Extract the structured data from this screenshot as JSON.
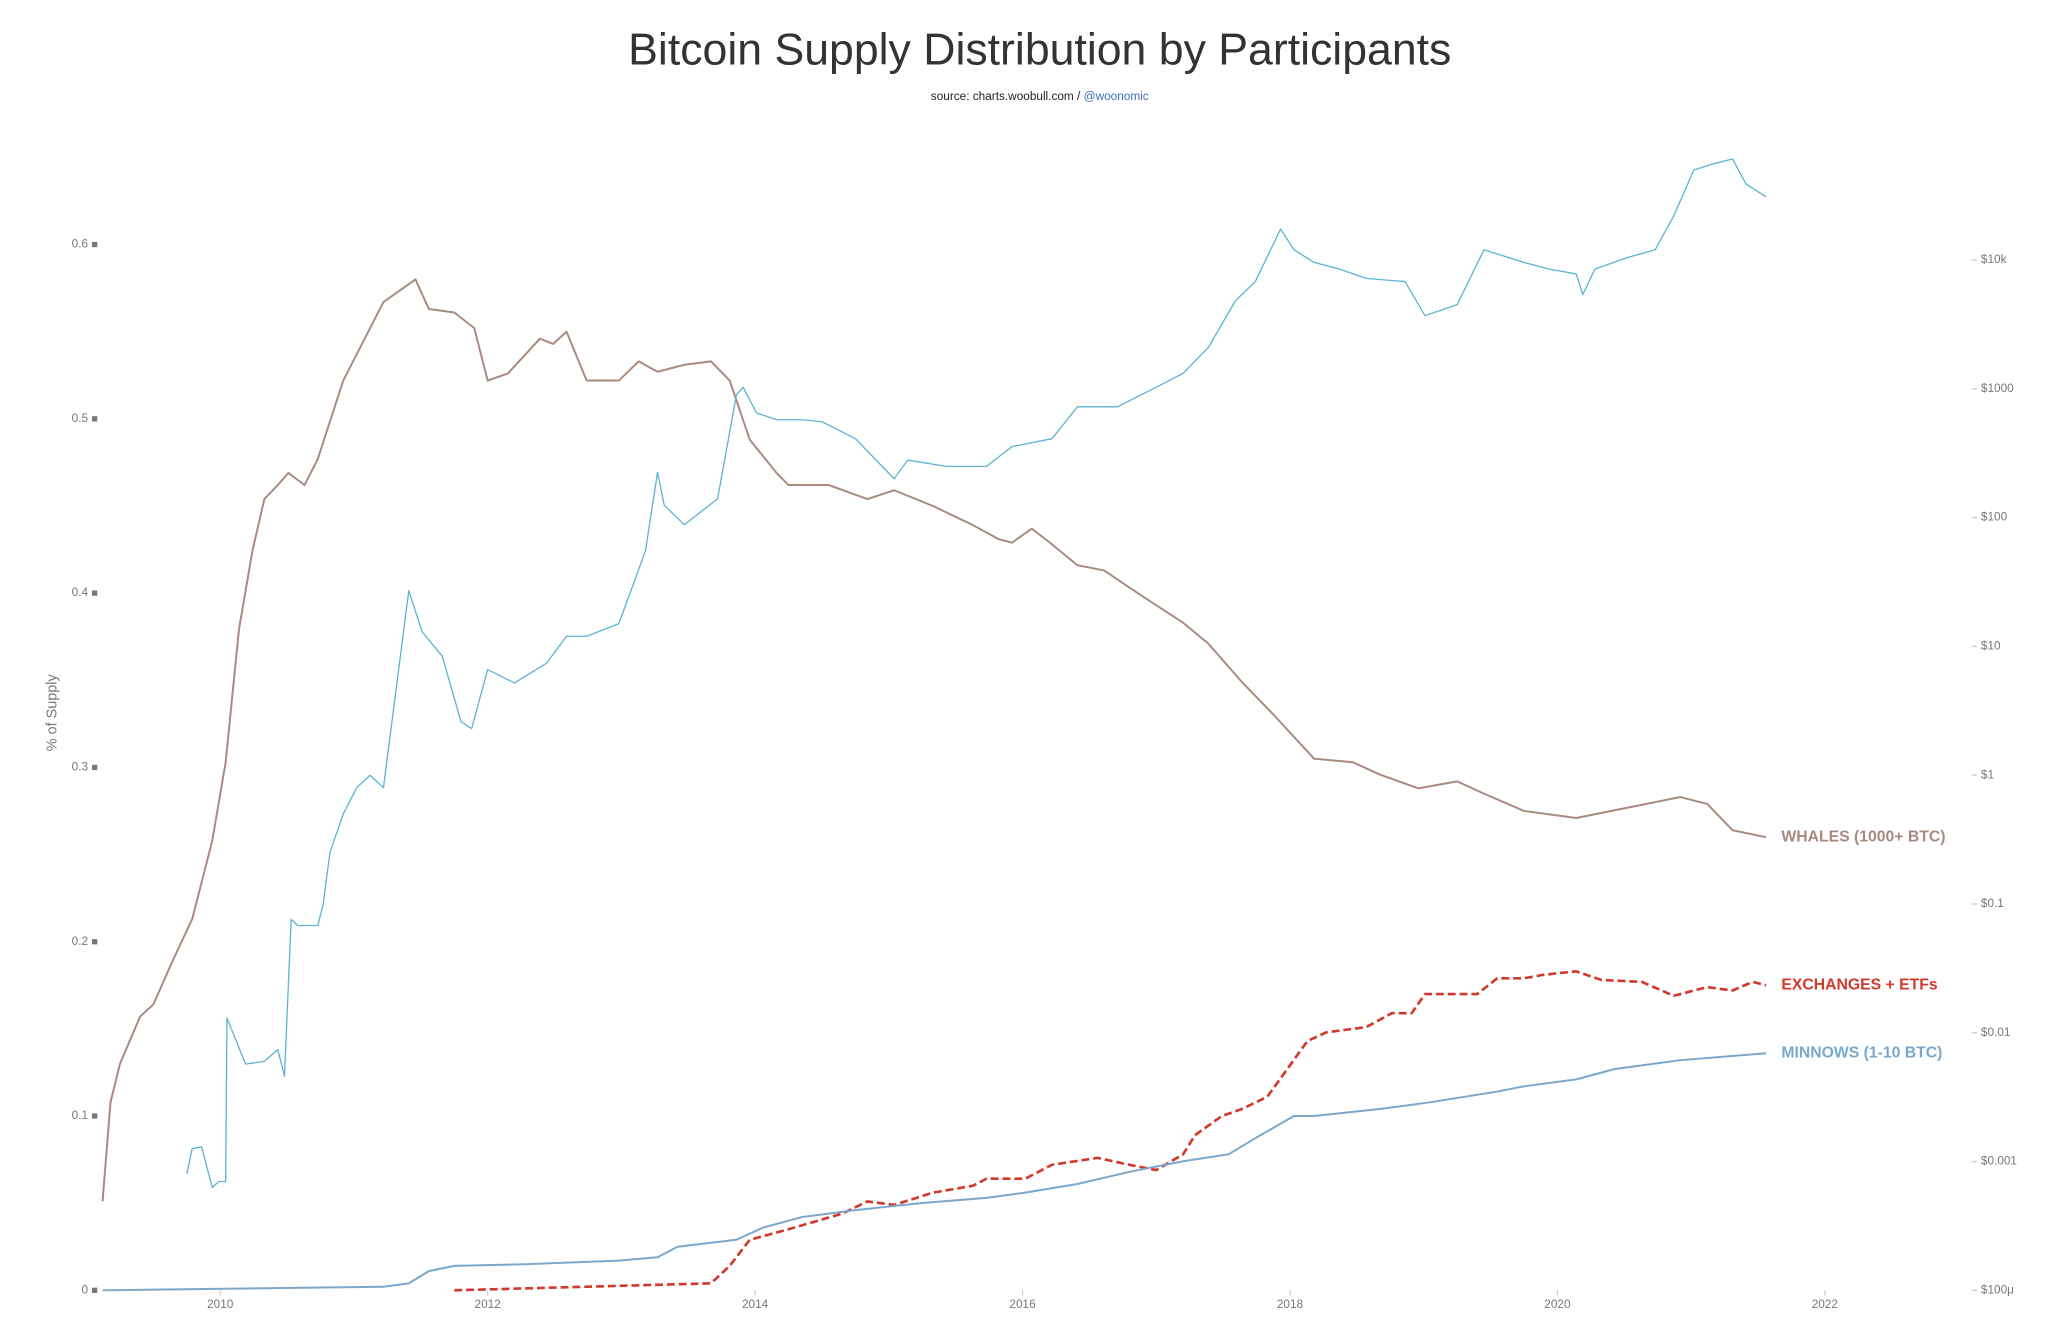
{
  "chart_data": {
    "type": "line",
    "title": "Bitcoin Supply Distribution by Participants",
    "subtitle": "source: charts.woobull.com / ",
    "subtitle_link": "@woonomic",
    "ylabel": "% of Supply",
    "xlim": [
      2009.1,
      2023
    ],
    "xticks": [
      2010,
      2012,
      2014,
      2016,
      2018,
      2020,
      2022
    ],
    "ylim": [
      0,
      0.665
    ],
    "yticks": [
      0,
      0.1,
      0.2,
      0.3,
      0.4,
      0.5,
      0.6
    ],
    "y2lim": [
      0.0001,
      100000
    ],
    "y2log": true,
    "y2ticks": [
      {
        "value": 0.0001,
        "label": "$100μ"
      },
      {
        "value": 0.001,
        "label": "$0.001"
      },
      {
        "value": 0.01,
        "label": "$0.01"
      },
      {
        "value": 0.1,
        "label": "$0.1"
      },
      {
        "value": 1,
        "label": "$1"
      },
      {
        "value": 10,
        "label": "$10"
      },
      {
        "value": 100,
        "label": "$100"
      },
      {
        "value": 1000,
        "label": "$1000"
      },
      {
        "value": 10000,
        "label": "$10k"
      }
    ],
    "series": [
      {
        "name": "WHALES (1000+ BTC)",
        "color": "#a88a80",
        "dashed": false,
        "x": [
          2009.12,
          2009.18,
          2009.25,
          2009.4,
          2009.5,
          2009.65,
          2009.79,
          2009.94,
          2010.04,
          2010.14,
          2010.24,
          2010.33,
          2010.43,
          2010.51,
          2010.63,
          2010.73,
          2010.92,
          2011.22,
          2011.46,
          2011.56,
          2011.75,
          2011.9,
          2012.0,
          2012.15,
          2012.39,
          2012.49,
          2012.59,
          2012.74,
          2012.98,
          2013.13,
          2013.27,
          2013.47,
          2013.67,
          2013.81,
          2013.96,
          2014.16,
          2014.25,
          2014.55,
          2014.84,
          2015.04,
          2015.33,
          2015.63,
          2015.82,
          2015.92,
          2016.07,
          2016.22,
          2016.41,
          2016.61,
          2016.9,
          2017.2,
          2017.39,
          2017.64,
          2017.88,
          2018.18,
          2018.47,
          2018.67,
          2018.96,
          2019.25,
          2019.45,
          2019.75,
          2020.14,
          2020.53,
          2020.92,
          2021.12,
          2021.31,
          2021.56
        ],
        "values": [
          0.051,
          0.108,
          0.13,
          0.157,
          0.164,
          0.19,
          0.213,
          0.258,
          0.303,
          0.379,
          0.424,
          0.454,
          0.462,
          0.469,
          0.462,
          0.477,
          0.522,
          0.567,
          0.58,
          0.563,
          0.561,
          0.552,
          0.522,
          0.526,
          0.546,
          0.543,
          0.55,
          0.522,
          0.522,
          0.533,
          0.527,
          0.531,
          0.533,
          0.522,
          0.488,
          0.469,
          0.462,
          0.462,
          0.454,
          0.459,
          0.45,
          0.439,
          0.431,
          0.429,
          0.437,
          0.428,
          0.416,
          0.413,
          0.398,
          0.383,
          0.371,
          0.349,
          0.33,
          0.305,
          0.303,
          0.296,
          0.288,
          0.292,
          0.285,
          0.275,
          0.271,
          0.277,
          0.283,
          0.279,
          0.264,
          0.26
        ]
      },
      {
        "name": "EXCHANGES + ETFs",
        "color": "#d0392b",
        "dashed": true,
        "x": [
          2011.75,
          2013.67,
          2013.81,
          2013.96,
          2014.25,
          2014.65,
          2014.84,
          2015.04,
          2015.33,
          2015.63,
          2015.73,
          2016.02,
          2016.22,
          2016.56,
          2016.8,
          2017.0,
          2017.2,
          2017.29,
          2017.49,
          2017.64,
          2017.83,
          2017.98,
          2018.13,
          2018.27,
          2018.57,
          2018.76,
          2018.91,
          2019.01,
          2019.4,
          2019.55,
          2019.75,
          2019.89,
          2020.14,
          2020.33,
          2020.63,
          2020.87,
          2021.12,
          2021.31,
          2021.46,
          2021.56
        ],
        "values": [
          0,
          0.004,
          0.014,
          0.029,
          0.035,
          0.044,
          0.051,
          0.049,
          0.056,
          0.06,
          0.064,
          0.064,
          0.072,
          0.076,
          0.072,
          0.069,
          0.078,
          0.089,
          0.1,
          0.104,
          0.111,
          0.127,
          0.143,
          0.148,
          0.151,
          0.159,
          0.159,
          0.17,
          0.17,
          0.179,
          0.179,
          0.181,
          0.183,
          0.178,
          0.177,
          0.169,
          0.174,
          0.172,
          0.177,
          0.175
        ]
      },
      {
        "name": "MINNOWS (1-10 BTC)",
        "color": "#7aa7cc",
        "dashed": false,
        "x": [
          2009.12,
          2011.22,
          2011.41,
          2011.56,
          2011.75,
          2012.29,
          2012.98,
          2013.27,
          2013.42,
          2013.86,
          2014.06,
          2014.35,
          2014.75,
          2015.24,
          2015.73,
          2016.02,
          2016.41,
          2016.8,
          2017.2,
          2017.54,
          2017.78,
          2018.03,
          2018.18,
          2018.67,
          2019.06,
          2019.55,
          2019.75,
          2020.14,
          2020.43,
          2020.92,
          2021.56
        ],
        "values": [
          0,
          0.002,
          0.004,
          0.011,
          0.014,
          0.015,
          0.017,
          0.019,
          0.025,
          0.029,
          0.036,
          0.042,
          0.046,
          0.05,
          0.053,
          0.056,
          0.061,
          0.068,
          0.074,
          0.078,
          0.089,
          0.1,
          0.1,
          0.104,
          0.108,
          0.114,
          0.117,
          0.121,
          0.127,
          0.132,
          0.136
        ]
      },
      {
        "color": "#5fb3d3",
        "dashed": false,
        "axis": "y2",
        "x": [
          2009.75,
          2009.79,
          2009.86,
          2009.94,
          2009.99,
          2010.04,
          2010.05,
          2010.19,
          2010.33,
          2010.43,
          2010.48,
          2010.53,
          2010.58,
          2010.73,
          2010.77,
          2010.82,
          2010.92,
          2011.02,
          2011.12,
          2011.22,
          2011.31,
          2011.41,
          2011.51,
          2011.66,
          2011.8,
          2011.88,
          2012.0,
          2012.2,
          2012.44,
          2012.59,
          2012.74,
          2012.98,
          2013.18,
          2013.27,
          2013.32,
          2013.47,
          2013.72,
          2013.86,
          2013.91,
          2014.01,
          2014.16,
          2014.35,
          2014.5,
          2014.75,
          2015.04,
          2015.14,
          2015.43,
          2015.73,
          2015.92,
          2016.22,
          2016.41,
          2016.71,
          2017.0,
          2017.2,
          2017.39,
          2017.59,
          2017.74,
          2017.93,
          2018.03,
          2018.18,
          2018.37,
          2018.57,
          2018.86,
          2019.01,
          2019.25,
          2019.45,
          2019.75,
          2019.94,
          2020.14,
          2020.19,
          2020.28,
          2020.53,
          2020.73,
          2020.87,
          2021.02,
          2021.17,
          2021.31,
          2021.41,
          2021.56
        ],
        "values": [
          0.0008,
          0.00126,
          0.0013,
          0.00063,
          0.0007,
          0.0007,
          0.013,
          0.0057,
          0.006,
          0.0074,
          0.0046,
          0.076,
          0.068,
          0.068,
          0.1,
          0.25,
          0.5,
          0.8,
          1,
          0.8,
          4.2,
          27,
          13,
          8.4,
          2.6,
          2.3,
          6.6,
          5.2,
          7.4,
          12,
          12,
          15,
          55,
          225,
          125,
          88,
          140,
          900,
          1030,
          650,
          575,
          575,
          555,
          410,
          200,
          280,
          250,
          250,
          355,
          410,
          725,
          725,
          1030,
          1320,
          2100,
          4800,
          6800,
          17400,
          12000,
          9600,
          8500,
          7200,
          6800,
          3700,
          4500,
          12000,
          9600,
          8500,
          7800,
          5400,
          8500,
          10500,
          12000,
          22000,
          50000,
          56000,
          61000,
          39000,
          31000
        ]
      }
    ]
  }
}
